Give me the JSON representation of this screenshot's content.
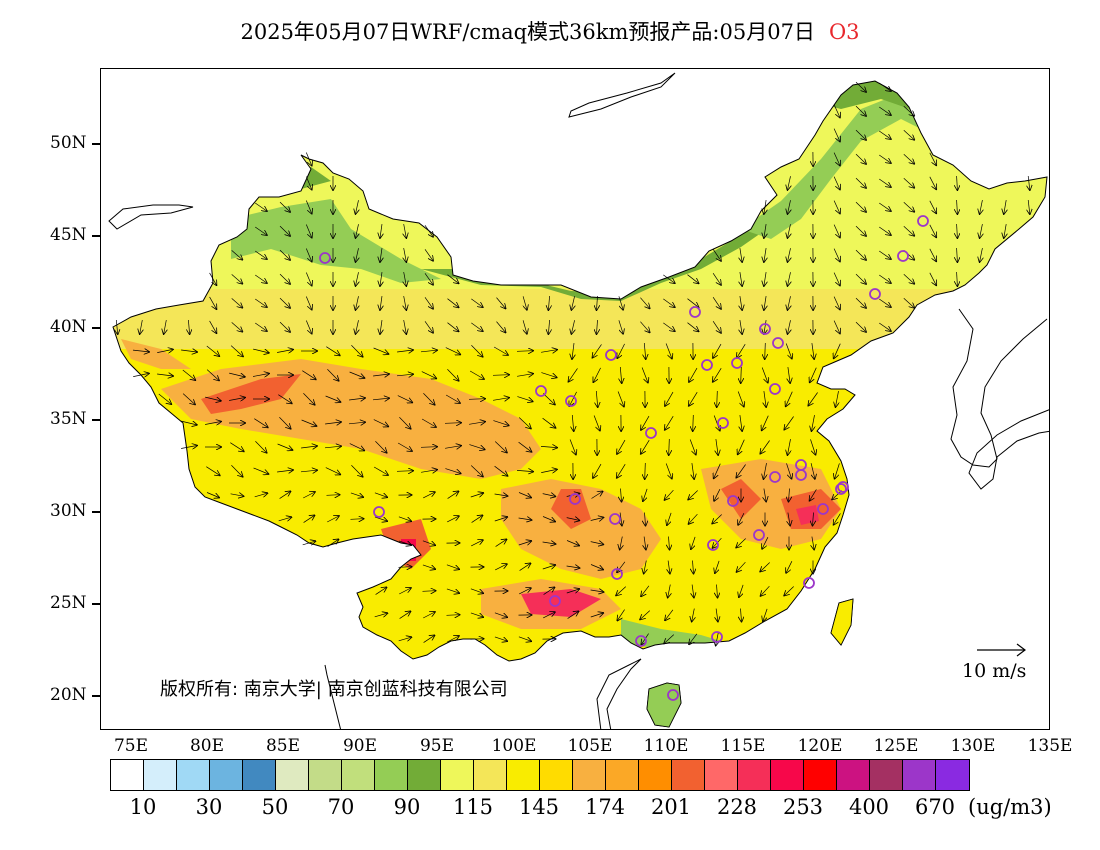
{
  "header": {
    "title": "2025年05月07日WRF/cmaq模式36km预报产品:05月07日",
    "species": "O3"
  },
  "map": {
    "lat_labels": [
      "50N",
      "45N",
      "40N",
      "35N",
      "30N",
      "25N",
      "20N"
    ],
    "lon_labels": [
      "75E",
      "80E",
      "85E",
      "90E",
      "95E",
      "100E",
      "105E",
      "110E",
      "115E",
      "120E",
      "125E",
      "130E",
      "135E"
    ],
    "copyright": "版权所有: 南京大学| 南京创蓝科技有限公司",
    "wind_reference": "10 m/s"
  },
  "legend": {
    "colors": [
      "#ffffff",
      "#d4eefb",
      "#a0d9f5",
      "#6cb4e0",
      "#4189c0",
      "#dfeac0",
      "#c3dc88",
      "#c1df7c",
      "#94cd55",
      "#72ac37",
      "#eef75a",
      "#f4e658",
      "#f9ec00",
      "#ffdc00",
      "#f8b040",
      "#fba826",
      "#ff8e00",
      "#f26130",
      "#ff6868",
      "#f52f58",
      "#f7074a",
      "#ff0000",
      "#cc1281",
      "#a43062",
      "#9c36c9",
      "#8a2ae1"
    ],
    "labels": [
      "10",
      "30",
      "50",
      "70",
      "90",
      "115",
      "145",
      "174",
      "201",
      "228",
      "253",
      "400",
      "670"
    ],
    "units": "(ug/m3)"
  },
  "stations_count": 33
}
